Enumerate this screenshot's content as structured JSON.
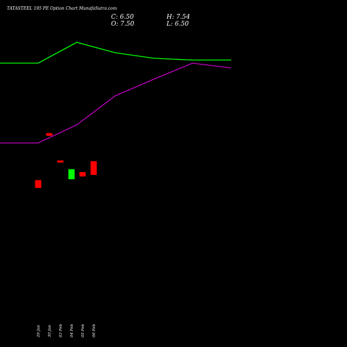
{
  "chart_data": {
    "type": "candlestick",
    "title": "TATASTEEL 195 PE Option Chart MunafaSutra.com",
    "ohlc_summary": {
      "close_label": "C:",
      "close_value": "6.50",
      "open_label": "O:",
      "open_value": "7.50",
      "high_label": "H:",
      "high_value": "7.54",
      "low_label": "L:",
      "low_value": "6.50"
    },
    "categories": [
      "29 Jan",
      "30 Jan",
      "03 Feb",
      "04 Feb",
      "05 Feb",
      "06 Feb"
    ],
    "candles": [
      {
        "date": "29 Jan",
        "open": 9.62,
        "close": 9.17,
        "high": 9.62,
        "low": 9.17,
        "color": "red"
      },
      {
        "date": "30 Jan",
        "open": 12.33,
        "close": 12.17,
        "high": 12.33,
        "low": 12.17,
        "color": "red"
      },
      {
        "date": "03 Feb",
        "open": 10.75,
        "close": 10.67,
        "high": 10.75,
        "low": 10.67,
        "color": "red"
      },
      {
        "date": "04 Feb",
        "open": 9.67,
        "close": 10.25,
        "high": 10.25,
        "low": 9.67,
        "color": "green"
      },
      {
        "date": "05 Feb",
        "open": 10.08,
        "close": 9.83,
        "high": 10.08,
        "low": 9.83,
        "color": "red"
      },
      {
        "date": "06 Feb",
        "open": 10.71,
        "close": 9.92,
        "high": 10.71,
        "low": 9.92,
        "color": "red"
      }
    ],
    "candle_scale": {
      "price_min": 0,
      "price_max": 20
    },
    "lines": [
      {
        "color": "#00ff00",
        "x": [
          -1,
          0,
          1,
          2,
          3,
          4,
          5
        ],
        "values": [
          15.9,
          15.9,
          18.9,
          17.4,
          16.6,
          16.35,
          16.35
        ]
      },
      {
        "color": "#c000c0",
        "x": [
          -1,
          0,
          1,
          2,
          3,
          4,
          5
        ],
        "values": [
          4.4,
          4.4,
          7.0,
          11.2,
          13.6,
          15.9,
          15.2
        ]
      }
    ],
    "line_scale": {
      "min": -10,
      "max": 20
    },
    "colors": {
      "background": "#000000",
      "up": "#00ff00",
      "down": "#ff0000",
      "text": "#ffffff"
    },
    "legend": "none",
    "grid": false
  }
}
